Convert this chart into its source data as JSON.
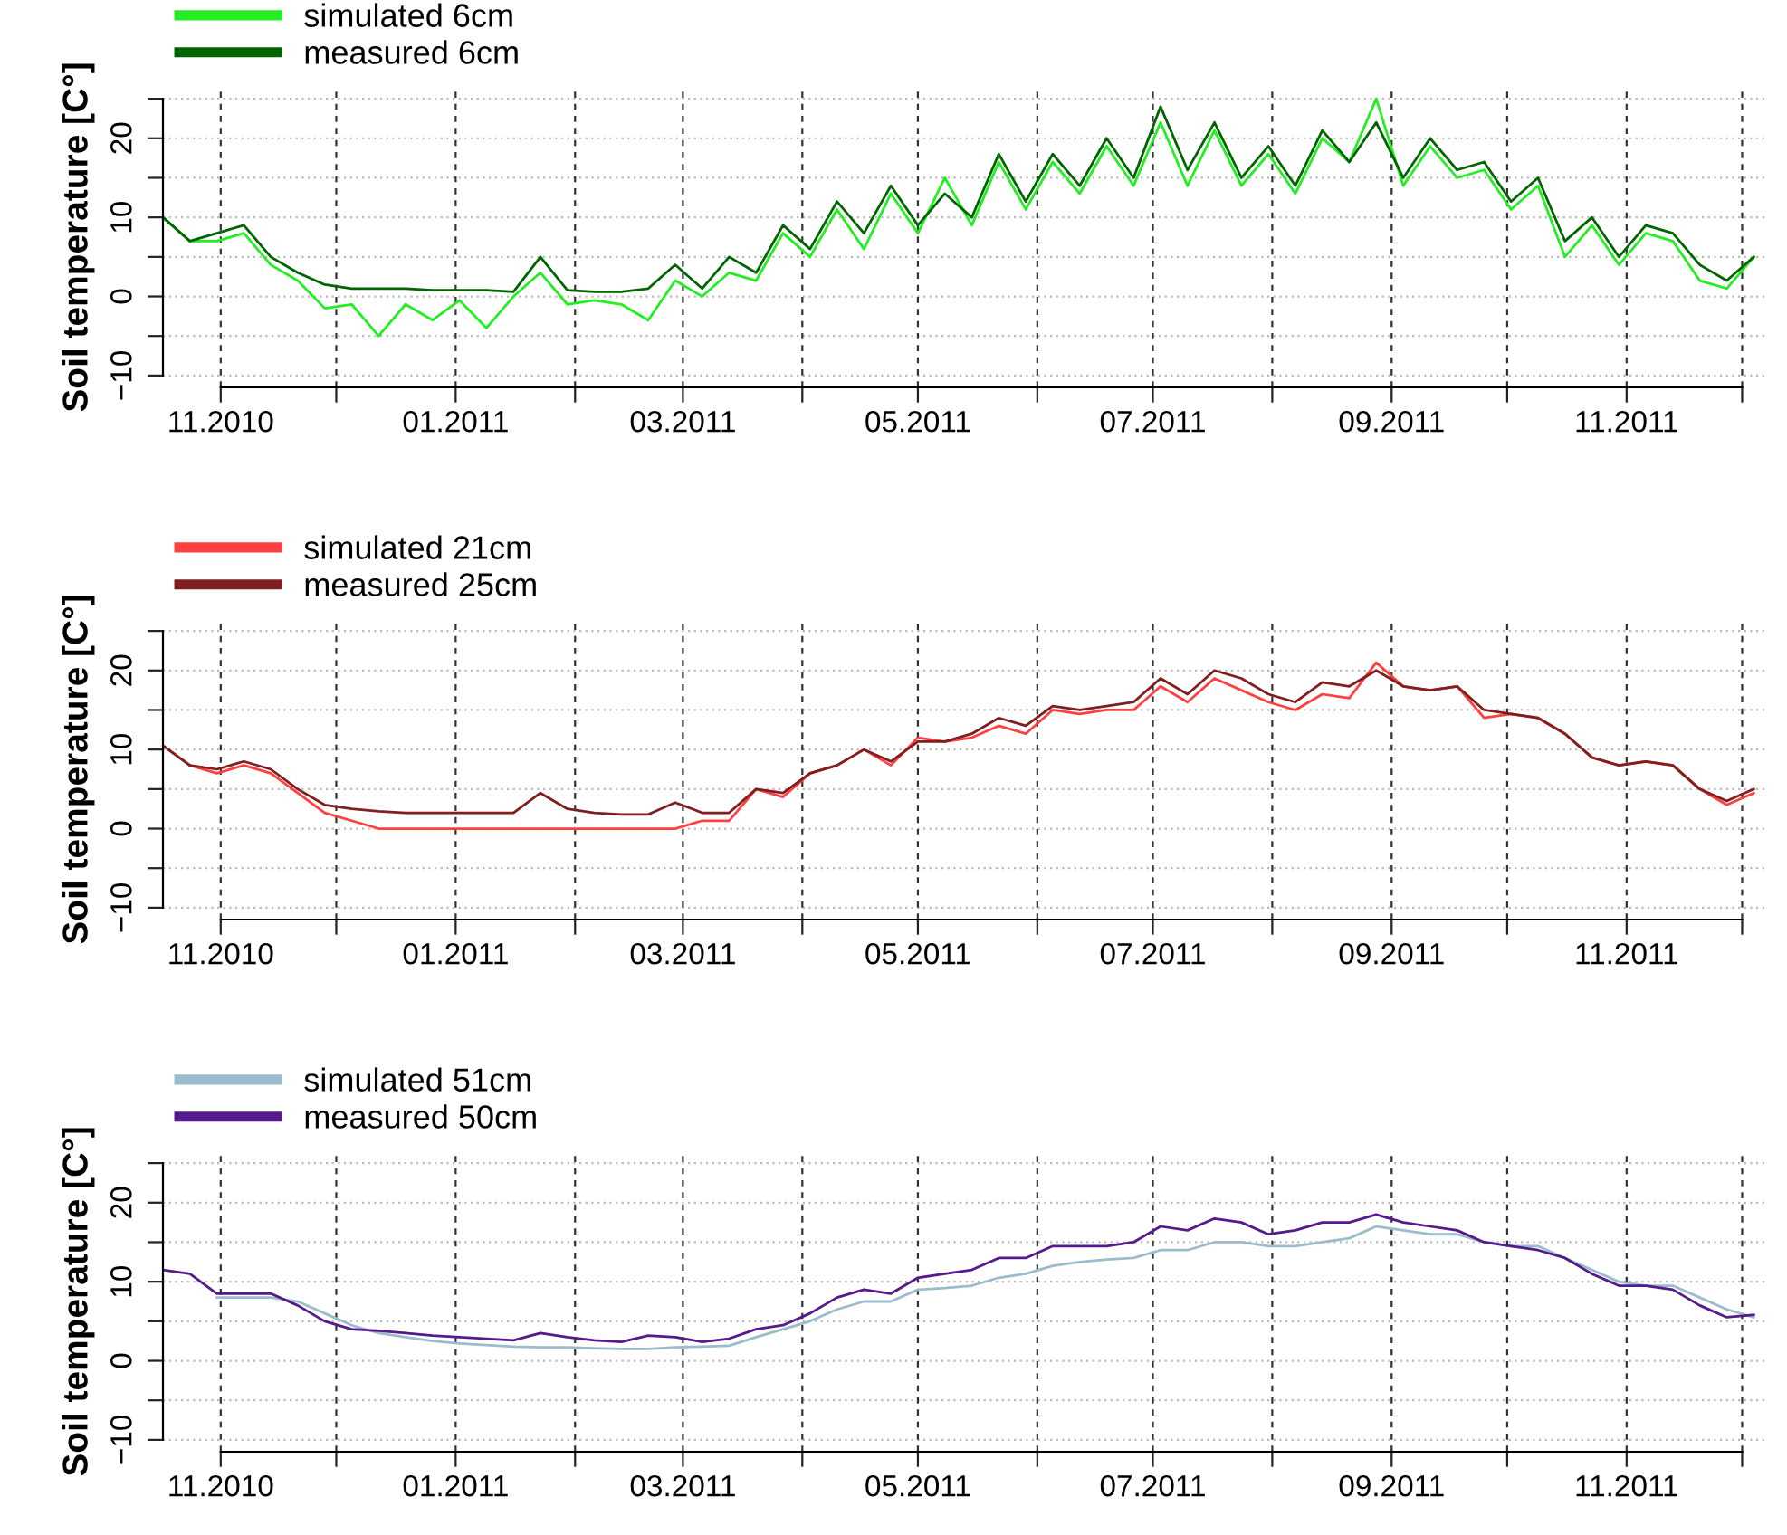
{
  "chart_data": [
    {
      "type": "line",
      "ylabel": "Soil temperature [C°]",
      "legend": "top left",
      "grid": true,
      "x": [
        "2010-10-17",
        "2010-10-24",
        "2010-10-31",
        "2010-11-07",
        "2010-11-14",
        "2010-11-21",
        "2010-11-28",
        "2010-12-05",
        "2010-12-12",
        "2010-12-19",
        "2010-12-26",
        "2011-01-02",
        "2011-01-09",
        "2011-01-16",
        "2011-01-23",
        "2011-01-30",
        "2011-02-06",
        "2011-02-13",
        "2011-02-20",
        "2011-02-27",
        "2011-03-06",
        "2011-03-13",
        "2011-03-20",
        "2011-03-27",
        "2011-04-03",
        "2011-04-10",
        "2011-04-17",
        "2011-04-24",
        "2011-05-01",
        "2011-05-08",
        "2011-05-15",
        "2011-05-22",
        "2011-05-29",
        "2011-06-05",
        "2011-06-12",
        "2011-06-19",
        "2011-06-26",
        "2011-07-03",
        "2011-07-10",
        "2011-07-17",
        "2011-07-24",
        "2011-07-31",
        "2011-08-07",
        "2011-08-14",
        "2011-08-21",
        "2011-08-28",
        "2011-09-04",
        "2011-09-11",
        "2011-09-18",
        "2011-09-25",
        "2011-10-02",
        "2011-10-09",
        "2011-10-16",
        "2011-10-23",
        "2011-10-30",
        "2011-11-06",
        "2011-11-13",
        "2011-11-20",
        "2011-11-27",
        "2011-12-04"
      ],
      "series": [
        {
          "name": "simulated 6cm",
          "color": "#22ee22",
          "values": [
            10,
            7,
            7,
            8,
            4,
            2,
            -1.5,
            -1,
            -5,
            -1,
            -3,
            -0.5,
            -4,
            0,
            3,
            -1,
            -0.5,
            -1,
            -3,
            2,
            0,
            3,
            2,
            8,
            5,
            11,
            6,
            13,
            8,
            15,
            9,
            17,
            11,
            17,
            13,
            19,
            14,
            22,
            14,
            21,
            14,
            18,
            13,
            20,
            17,
            25,
            14,
            19,
            15,
            16,
            11,
            14,
            5,
            9,
            4,
            8,
            7,
            2,
            1,
            5
          ]
        },
        {
          "name": "measured 6cm",
          "color": "#006400",
          "values": [
            10,
            7,
            8,
            9,
            5,
            3,
            1.5,
            1,
            1,
            1,
            0.8,
            0.8,
            0.8,
            0.6,
            5,
            0.8,
            0.6,
            0.6,
            1,
            4,
            1,
            5,
            3,
            9,
            6,
            12,
            8,
            14,
            9,
            13,
            10,
            18,
            12,
            18,
            14,
            20,
            15,
            24,
            16,
            22,
            15,
            19,
            14,
            21,
            17,
            22,
            15,
            20,
            16,
            17,
            12,
            15,
            7,
            10,
            5,
            9,
            8,
            4,
            2,
            5
          ]
        }
      ],
      "xlim": [
        "2010-10-17",
        "2011-12-07"
      ],
      "xticks": [
        {
          "value": "2010-11-01",
          "label": "11.2010"
        },
        {
          "value": "2010-12-01",
          "label": null
        },
        {
          "value": "2011-01-01",
          "label": "01.2011"
        },
        {
          "value": "2011-02-01",
          "label": null
        },
        {
          "value": "2011-03-01",
          "label": "03.2011"
        },
        {
          "value": "2011-04-01",
          "label": null
        },
        {
          "value": "2011-05-01",
          "label": "05.2011"
        },
        {
          "value": "2011-06-01",
          "label": null
        },
        {
          "value": "2011-07-01",
          "label": "07.2011"
        },
        {
          "value": "2011-08-01",
          "label": null
        },
        {
          "value": "2011-09-01",
          "label": "09.2011"
        },
        {
          "value": "2011-10-01",
          "label": null
        },
        {
          "value": "2011-11-01",
          "label": "11.2011"
        },
        {
          "value": "2011-12-01",
          "label": null
        }
      ],
      "ylim": [
        -11.5,
        26.5
      ],
      "yticks": [
        {
          "value": -10,
          "label": "−10"
        },
        {
          "value": -5,
          "label": null
        },
        0,
        {
          "value": 5,
          "label": null
        },
        10,
        {
          "value": 15,
          "label": null
        },
        20,
        {
          "value": 25,
          "label": null
        }
      ]
    },
    {
      "type": "line",
      "ylabel": "Soil temperature [C°]",
      "legend": "top left",
      "grid": true,
      "x": [
        "2010-10-17",
        "2010-10-24",
        "2010-10-31",
        "2010-11-07",
        "2010-11-14",
        "2010-11-21",
        "2010-11-28",
        "2010-12-05",
        "2010-12-12",
        "2010-12-19",
        "2010-12-26",
        "2011-01-02",
        "2011-01-09",
        "2011-01-16",
        "2011-01-23",
        "2011-01-30",
        "2011-02-06",
        "2011-02-13",
        "2011-02-20",
        "2011-02-27",
        "2011-03-06",
        "2011-03-13",
        "2011-03-20",
        "2011-03-27",
        "2011-04-03",
        "2011-04-10",
        "2011-04-17",
        "2011-04-24",
        "2011-05-01",
        "2011-05-08",
        "2011-05-15",
        "2011-05-22",
        "2011-05-29",
        "2011-06-05",
        "2011-06-12",
        "2011-06-19",
        "2011-06-26",
        "2011-07-03",
        "2011-07-10",
        "2011-07-17",
        "2011-07-24",
        "2011-07-31",
        "2011-08-07",
        "2011-08-14",
        "2011-08-21",
        "2011-08-28",
        "2011-09-04",
        "2011-09-11",
        "2011-09-18",
        "2011-09-25",
        "2011-10-02",
        "2011-10-09",
        "2011-10-16",
        "2011-10-23",
        "2011-10-30",
        "2011-11-06",
        "2011-11-13",
        "2011-11-20",
        "2011-11-27",
        "2011-12-04"
      ],
      "series": [
        {
          "name": "simulated 21cm",
          "color": "#ff4040",
          "values": [
            10.5,
            8,
            7,
            8,
            7,
            4.5,
            2,
            1,
            0,
            0,
            0,
            0,
            0,
            0,
            0,
            0,
            0,
            0,
            0,
            0,
            1,
            1,
            5,
            4,
            7,
            8,
            10,
            8,
            11.5,
            11,
            11.5,
            13,
            12,
            15,
            14.5,
            15,
            15,
            18,
            16,
            19,
            17.5,
            16,
            15,
            17,
            16.5,
            21,
            18,
            17.5,
            18,
            14,
            14.5,
            14,
            12,
            9,
            8,
            8.5,
            8,
            5,
            3,
            4.5
          ]
        },
        {
          "name": "measured 25cm",
          "color": "#7f1f1f",
          "values": [
            10.5,
            8,
            7.5,
            8.5,
            7.5,
            5,
            3,
            2.5,
            2.2,
            2,
            2,
            2,
            2,
            2,
            4.5,
            2.5,
            2,
            1.8,
            1.8,
            3.3,
            2,
            2,
            5,
            4.5,
            7,
            8,
            10,
            8.5,
            11,
            11,
            12,
            14,
            13,
            15.5,
            15,
            15.5,
            16,
            19,
            17,
            20,
            19,
            17,
            16,
            18.5,
            18,
            20,
            18,
            17.5,
            18,
            15,
            14.5,
            14,
            12,
            9,
            8,
            8.5,
            8,
            5,
            3.5,
            5
          ]
        }
      ],
      "xlim": [
        "2010-10-17",
        "2011-12-07"
      ],
      "xticks": [
        {
          "value": "2010-11-01",
          "label": "11.2010"
        },
        {
          "value": "2010-12-01",
          "label": null
        },
        {
          "value": "2011-01-01",
          "label": "01.2011"
        },
        {
          "value": "2011-02-01",
          "label": null
        },
        {
          "value": "2011-03-01",
          "label": "03.2011"
        },
        {
          "value": "2011-04-01",
          "label": null
        },
        {
          "value": "2011-05-01",
          "label": "05.2011"
        },
        {
          "value": "2011-06-01",
          "label": null
        },
        {
          "value": "2011-07-01",
          "label": "07.2011"
        },
        {
          "value": "2011-08-01",
          "label": null
        },
        {
          "value": "2011-09-01",
          "label": "09.2011"
        },
        {
          "value": "2011-10-01",
          "label": null
        },
        {
          "value": "2011-11-01",
          "label": "11.2011"
        },
        {
          "value": "2011-12-01",
          "label": null
        }
      ],
      "ylim": [
        -11.5,
        26.5
      ],
      "yticks": [
        {
          "value": -10,
          "label": "−10"
        },
        {
          "value": -5,
          "label": null
        },
        0,
        {
          "value": 5,
          "label": null
        },
        10,
        {
          "value": 15,
          "label": null
        },
        20,
        {
          "value": 25,
          "label": null
        }
      ]
    },
    {
      "type": "line",
      "ylabel": "Soil temperature [C°]",
      "legend": "top left",
      "grid": true,
      "x": [
        "2010-10-17",
        "2010-10-24",
        "2010-10-31",
        "2010-11-07",
        "2010-11-14",
        "2010-11-21",
        "2010-11-28",
        "2010-12-05",
        "2010-12-12",
        "2010-12-19",
        "2010-12-26",
        "2011-01-02",
        "2011-01-09",
        "2011-01-16",
        "2011-01-23",
        "2011-01-30",
        "2011-02-06",
        "2011-02-13",
        "2011-02-20",
        "2011-02-27",
        "2011-03-06",
        "2011-03-13",
        "2011-03-20",
        "2011-03-27",
        "2011-04-03",
        "2011-04-10",
        "2011-04-17",
        "2011-04-24",
        "2011-05-01",
        "2011-05-08",
        "2011-05-15",
        "2011-05-22",
        "2011-05-29",
        "2011-06-05",
        "2011-06-12",
        "2011-06-19",
        "2011-06-26",
        "2011-07-03",
        "2011-07-10",
        "2011-07-17",
        "2011-07-24",
        "2011-07-31",
        "2011-08-07",
        "2011-08-14",
        "2011-08-21",
        "2011-08-28",
        "2011-09-04",
        "2011-09-11",
        "2011-09-18",
        "2011-09-25",
        "2011-10-02",
        "2011-10-09",
        "2011-10-16",
        "2011-10-23",
        "2011-10-30",
        "2011-11-06",
        "2011-11-13",
        "2011-11-20",
        "2011-11-27",
        "2011-12-04"
      ],
      "series": [
        {
          "name": "simulated 51cm",
          "color": "#9bbccc",
          "values": [
            null,
            null,
            8,
            8,
            8,
            7.5,
            6,
            4.5,
            3.5,
            3,
            2.5,
            2.2,
            2,
            1.8,
            1.7,
            1.7,
            1.6,
            1.5,
            1.5,
            1.7,
            1.8,
            1.9,
            3,
            4,
            5,
            6.5,
            7.5,
            7.5,
            9,
            9.2,
            9.5,
            10.5,
            11,
            12,
            12.5,
            12.8,
            13,
            14,
            14,
            15,
            15,
            14.5,
            14.5,
            15,
            15.5,
            17,
            16.5,
            16,
            16,
            15,
            14.5,
            14.5,
            13,
            11.5,
            10,
            9.5,
            9.5,
            8,
            6.5,
            5.5
          ]
        },
        {
          "name": "measured 50cm",
          "color": "#551a8b",
          "values": [
            11.5,
            11,
            8.5,
            8.5,
            8.5,
            7,
            5,
            4,
            3.8,
            3.5,
            3.2,
            3,
            2.8,
            2.6,
            3.5,
            3,
            2.6,
            2.4,
            3.2,
            3,
            2.4,
            2.8,
            4,
            4.5,
            6,
            8,
            9,
            8.5,
            10.5,
            11,
            11.5,
            13,
            13,
            14.5,
            14.5,
            14.5,
            15,
            17,
            16.5,
            18,
            17.5,
            16,
            16.5,
            17.5,
            17.5,
            18.5,
            17.5,
            17,
            16.5,
            15,
            14.5,
            14,
            13,
            11,
            9.5,
            9.5,
            9,
            7,
            5.5,
            5.8
          ]
        }
      ],
      "xlim": [
        "2010-10-17",
        "2011-12-07"
      ],
      "xticks": [
        {
          "value": "2010-11-01",
          "label": "11.2010"
        },
        {
          "value": "2010-12-01",
          "label": null
        },
        {
          "value": "2011-01-01",
          "label": "01.2011"
        },
        {
          "value": "2011-02-01",
          "label": null
        },
        {
          "value": "2011-03-01",
          "label": "03.2011"
        },
        {
          "value": "2011-04-01",
          "label": null
        },
        {
          "value": "2011-05-01",
          "label": "05.2011"
        },
        {
          "value": "2011-06-01",
          "label": null
        },
        {
          "value": "2011-07-01",
          "label": "07.2011"
        },
        {
          "value": "2011-08-01",
          "label": null
        },
        {
          "value": "2011-09-01",
          "label": "09.2011"
        },
        {
          "value": "2011-10-01",
          "label": null
        },
        {
          "value": "2011-11-01",
          "label": "11.2011"
        },
        {
          "value": "2011-12-01",
          "label": null
        }
      ],
      "ylim": [
        -11.5,
        26.5
      ],
      "yticks": [
        {
          "value": -10,
          "label": "−10"
        },
        {
          "value": -5,
          "label": null
        },
        0,
        {
          "value": 5,
          "label": null
        },
        10,
        {
          "value": 15,
          "label": null
        },
        20,
        {
          "value": 25,
          "label": null
        }
      ]
    }
  ]
}
